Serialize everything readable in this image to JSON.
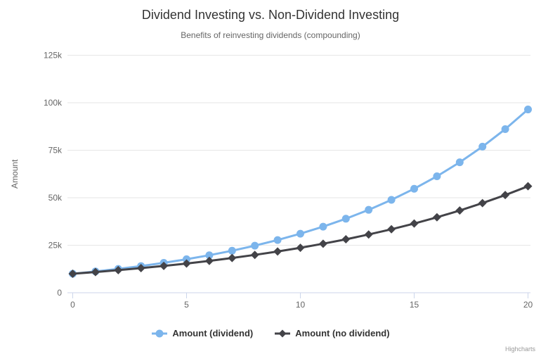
{
  "chart_data": {
    "type": "line",
    "title": "Dividend Investing vs. Non-Dividend Investing",
    "subtitle": "Benefits of reinvesting dividends (compounding)",
    "xlabel": "",
    "ylabel": "Amount",
    "x": [
      0,
      1,
      2,
      3,
      4,
      5,
      6,
      7,
      8,
      9,
      10,
      11,
      12,
      13,
      14,
      15,
      16,
      17,
      18,
      19,
      20
    ],
    "series": [
      {
        "name": "Amount (dividend)",
        "color": "#7cb5ec",
        "marker": "circle",
        "values": [
          10000,
          11200,
          12544,
          14049,
          15735,
          17623,
          19738,
          22107,
          24760,
          27731,
          31058,
          34785,
          38960,
          43635,
          48871,
          54736,
          61304,
          68660,
          76900,
          86128,
          96463
        ]
      },
      {
        "name": "Amount (no dividend)",
        "color": "#434348",
        "marker": "diamond",
        "values": [
          10000,
          10900,
          11881,
          12950,
          14116,
          15386,
          16771,
          18280,
          19926,
          21719,
          23674,
          25804,
          28127,
          30658,
          33417,
          36425,
          39703,
          43276,
          47171,
          51417,
          56044
        ]
      }
    ],
    "xlim": [
      0,
      20
    ],
    "ylim": [
      0,
      125000
    ],
    "xticks": [
      0,
      5,
      10,
      15,
      20
    ],
    "xtick_labels": [
      "0",
      "5",
      "10",
      "15",
      "20"
    ],
    "ytick_values": [
      0,
      25000,
      50000,
      75000,
      100000,
      125000
    ],
    "ytick_labels": [
      "0",
      "25k",
      "50k",
      "75k",
      "100k",
      "125k"
    ],
    "grid": "horizontal",
    "legend_position": "bottom",
    "credits": "Highcharts",
    "colors": {
      "background": "#ffffff",
      "grid": "#e6e6e6",
      "axis_line": "#ccd6eb",
      "title_text": "#333333",
      "subtitle_text": "#666666",
      "label_text": "#666666",
      "legend_text": "#333333",
      "credits_text": "#999999"
    }
  }
}
